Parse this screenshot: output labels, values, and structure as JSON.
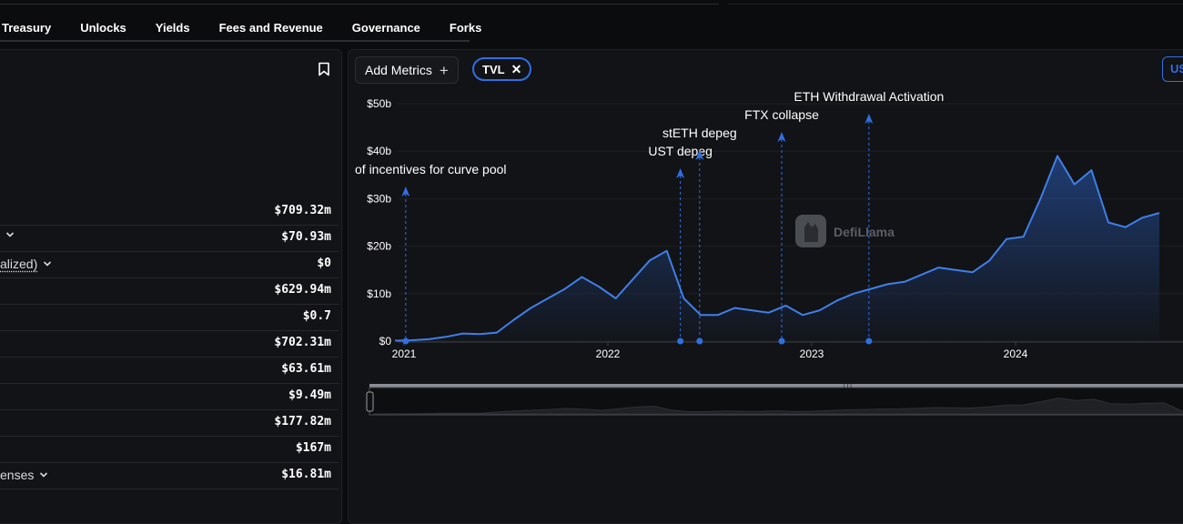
{
  "tabs": [
    "Treasury",
    "Unlocks",
    "Yields",
    "Fees and Revenue",
    "Governance",
    "Forks"
  ],
  "metrics_rows": [
    {
      "label": "",
      "value": "$709.32m",
      "chevron": false,
      "underline": false
    },
    {
      "label": "",
      "value": "$70.93m",
      "chevron": true,
      "underline": false
    },
    {
      "label": "alized)",
      "value": "$0",
      "chevron": true,
      "underline": true
    },
    {
      "label": "",
      "value": "$629.94m",
      "chevron": false,
      "underline": false
    },
    {
      "label": "",
      "value": "$0.7",
      "chevron": false,
      "underline": false
    },
    {
      "label": "",
      "value": "$702.31m",
      "chevron": false,
      "underline": false
    },
    {
      "label": "",
      "value": "$63.61m",
      "chevron": false,
      "underline": false
    },
    {
      "label": "",
      "value": "$9.49m",
      "chevron": false,
      "underline": false
    },
    {
      "label": "",
      "value": "$177.82m",
      "chevron": false,
      "underline": false
    },
    {
      "label": "",
      "value": "$167m",
      "chevron": false,
      "underline": false
    },
    {
      "label": "enses",
      "value": "$16.81m",
      "chevron": true,
      "underline": false
    }
  ],
  "toolbar": {
    "add_metrics_label": "Add Metrics",
    "tvl_chip_label": "TVL",
    "currency_label": "US"
  },
  "watermark": "DefiLlama",
  "colors": {
    "accent": "#2f6fe4",
    "line": "#3f7fe8"
  },
  "chart_data": {
    "type": "area",
    "series": [
      {
        "name": "TVL",
        "x": [
          "2020-12",
          "2021-01",
          "2021-02",
          "2021-03",
          "2021-04",
          "2021-05",
          "2021-06",
          "2021-07",
          "2021-08",
          "2021-09",
          "2021-10",
          "2021-11",
          "2021-12",
          "2022-01",
          "2022-02",
          "2022-03",
          "2022-04",
          "2022-05",
          "2022-06",
          "2022-07",
          "2022-08",
          "2022-09",
          "2022-10",
          "2022-11",
          "2022-12",
          "2023-01",
          "2023-02",
          "2023-03",
          "2023-04",
          "2023-05",
          "2023-06",
          "2023-07",
          "2023-08",
          "2023-09",
          "2023-10",
          "2023-11",
          "2023-12",
          "2024-01",
          "2024-02",
          "2024-03",
          "2024-04",
          "2024-05",
          "2024-06",
          "2024-07",
          "2024-08",
          "2024-09"
        ],
        "y": [
          0.1,
          0.2,
          0.4,
          0.9,
          1.6,
          1.5,
          1.8,
          4.5,
          7.0,
          9.0,
          11.0,
          13.5,
          11.5,
          9.0,
          13.0,
          17.0,
          19.0,
          9.0,
          5.5,
          5.5,
          7.0,
          6.5,
          6.0,
          7.5,
          5.5,
          6.5,
          8.5,
          10.0,
          11.0,
          12.0,
          12.5,
          14.0,
          15.5,
          15.0,
          14.5,
          17.0,
          21.5,
          22.0,
          30.0,
          39.0,
          33.0,
          36.0,
          25.0,
          24.0,
          26.0,
          27.0
        ]
      }
    ],
    "x_ticks": [
      "2021",
      "2022",
      "2023",
      "2024"
    ],
    "y_ticks": [
      "$0",
      "$10b",
      "$20b",
      "$30b",
      "$40b",
      "$50b"
    ],
    "ylim": [
      0,
      50
    ],
    "y_unit": "billion USD",
    "annotations": [
      {
        "x": "2021-01-04",
        "label": "of incentives for curve pool"
      },
      {
        "x": "2022-05-09",
        "label": "UST depeg"
      },
      {
        "x": "2022-06-13",
        "label": "stETH depeg"
      },
      {
        "x": "2022-11-08",
        "label": "FTX collapse"
      },
      {
        "x": "2023-04-12",
        "label": "ETH Withdrawal Activation"
      }
    ],
    "grid": true,
    "legend": "none"
  }
}
